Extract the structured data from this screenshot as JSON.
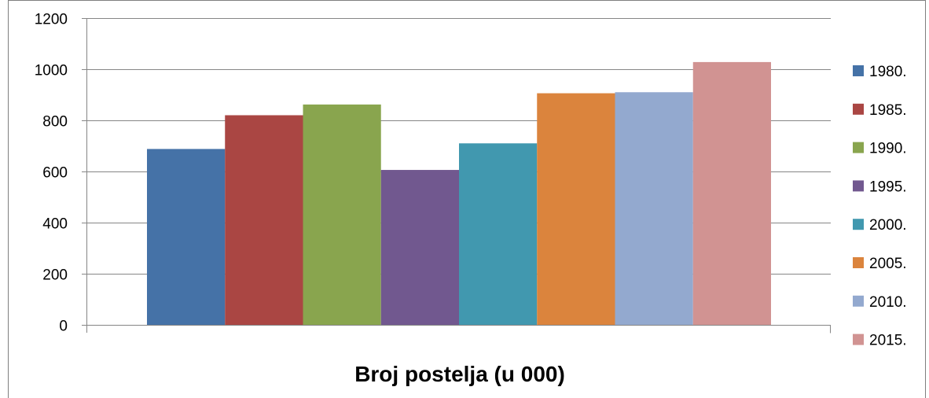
{
  "chart_data": {
    "type": "bar",
    "xlabel": "Broj postelja (u 000)",
    "ylim": [
      0,
      1200
    ],
    "yticks": [
      0,
      200,
      400,
      600,
      800,
      1000,
      1200
    ],
    "grid": true,
    "legend_position": "right",
    "series": [
      {
        "name": "1980.",
        "value": 688,
        "color": "#4572a7"
      },
      {
        "name": "1985.",
        "value": 820,
        "color": "#aa4643"
      },
      {
        "name": "1990.",
        "value": 862,
        "color": "#89a54e"
      },
      {
        "name": "1995.",
        "value": 606,
        "color": "#71588f"
      },
      {
        "name": "2000.",
        "value": 710,
        "color": "#4198af"
      },
      {
        "name": "2005.",
        "value": 906,
        "color": "#db843d"
      },
      {
        "name": "2010.",
        "value": 910,
        "color": "#93a9cf"
      },
      {
        "name": "2015.",
        "value": 1028,
        "color": "#d19392"
      }
    ]
  }
}
